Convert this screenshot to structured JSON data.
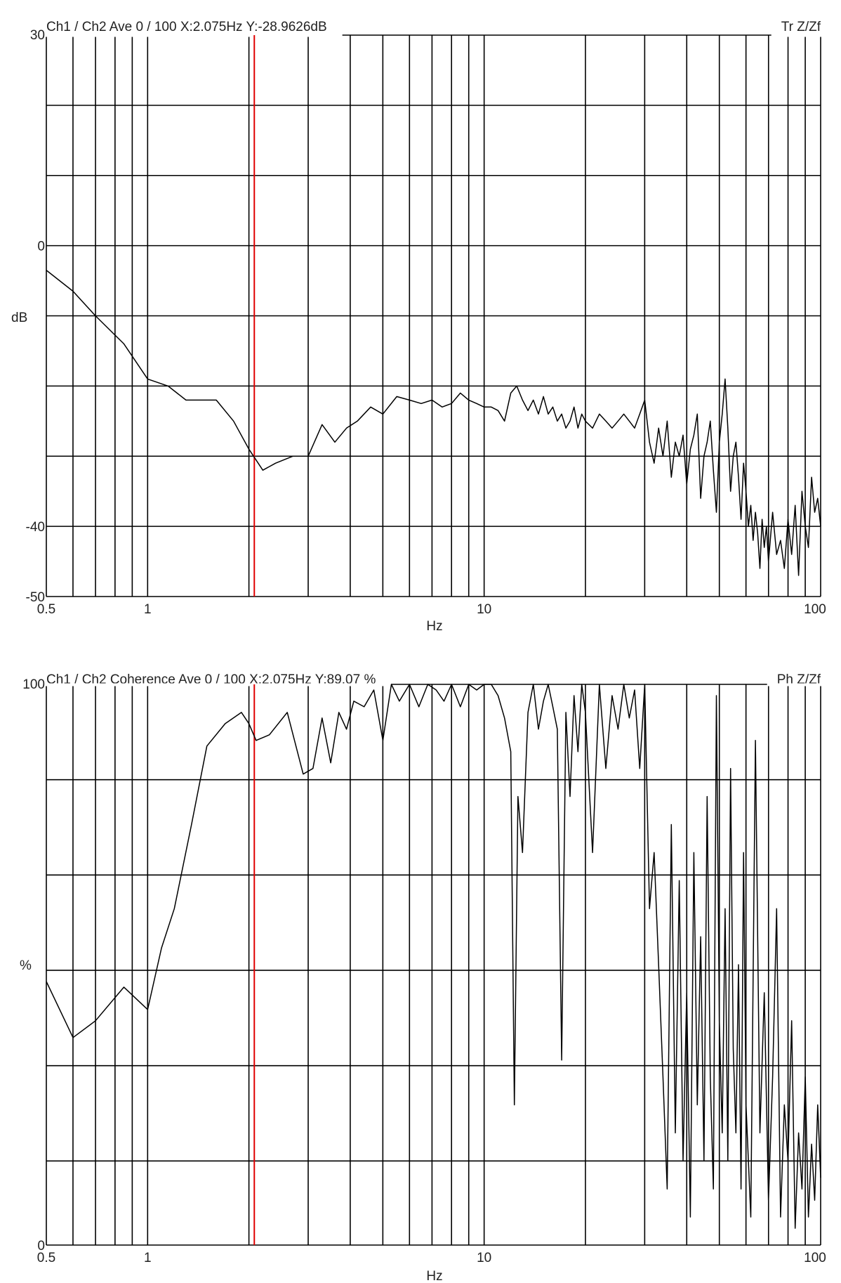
{
  "accent": {
    "cursor": "#e00000",
    "grid": "#000000",
    "trace": "#000000"
  },
  "chart_data": [
    {
      "type": "line",
      "header": "Ch1 / Ch2  Ave 0 / 100  X:2.075Hz  Y:-28.9626dB",
      "corner_label": "Tr Z/Zf",
      "xlabel": "Hz",
      "ylabel": "dB",
      "x_scale": "log",
      "xlim": [
        0.5,
        100
      ],
      "ylim": [
        -50,
        30
      ],
      "x_tick_labels": [
        "0.5",
        "1",
        "10",
        "100"
      ],
      "y_tick_labels": [
        "30",
        "0",
        "-40",
        "-50"
      ],
      "cursor_x": 2.075,
      "cursor_y": -28.9626,
      "grid": true,
      "x": [
        0.5,
        0.6,
        0.7,
        0.85,
        1.0,
        1.15,
        1.3,
        1.6,
        1.8,
        2.0,
        2.2,
        2.4,
        2.7,
        3.0,
        3.3,
        3.6,
        3.9,
        4.2,
        4.6,
        5.0,
        5.5,
        6.0,
        6.5,
        7.0,
        7.5,
        8.0,
        8.5,
        9.0,
        9.5,
        10,
        10.5,
        11,
        11.5,
        12,
        12.5,
        13,
        13.5,
        14,
        14.5,
        15,
        15.5,
        16,
        16.5,
        17,
        17.5,
        18,
        18.5,
        19,
        19.5,
        20,
        21,
        22,
        23,
        24,
        25,
        26,
        27,
        28,
        29,
        30,
        31,
        32,
        33,
        34,
        35,
        36,
        37,
        38,
        39,
        40,
        41,
        42,
        43,
        44,
        45,
        46,
        47,
        48,
        49,
        50,
        51,
        52,
        53,
        54,
        55,
        56,
        57,
        58,
        59,
        60,
        61,
        62,
        63,
        64,
        65,
        66,
        67,
        68,
        69,
        70,
        72,
        74,
        76,
        78,
        80,
        82,
        84,
        86,
        88,
        90,
        92,
        94,
        96,
        98,
        100
      ],
      "y": [
        -3.5,
        -6.5,
        -10,
        -14,
        -19,
        -20,
        -22,
        -22,
        -25,
        -29,
        -32,
        -31,
        -30,
        -30,
        -25.5,
        -28,
        -26,
        -25,
        -23,
        -24,
        -21.5,
        -22,
        -22.5,
        -22,
        -23,
        -22.5,
        -21,
        -22,
        -22.5,
        -23,
        -23,
        -23.5,
        -25,
        -21,
        -20,
        -22,
        -23.5,
        -22,
        -24,
        -21.5,
        -24,
        -23,
        -25,
        -24,
        -26,
        -25,
        -23,
        -26,
        -24,
        -25,
        -26,
        -24,
        -25,
        -26,
        -25,
        -24,
        -25,
        -26,
        -24,
        -22,
        -28,
        -31,
        -26,
        -30,
        -25,
        -33,
        -28,
        -30,
        -27,
        -34,
        -29,
        -27,
        -24,
        -36,
        -30,
        -28,
        -25,
        -32,
        -38,
        -28,
        -24,
        -19,
        -26,
        -35,
        -30,
        -28,
        -33,
        -39,
        -31,
        -35,
        -40,
        -37,
        -42,
        -38,
        -41,
        -46,
        -39,
        -43,
        -40,
        -45,
        -38,
        -44,
        -42,
        -46,
        -39,
        -44,
        -37,
        -47,
        -35,
        -40,
        -43,
        -33,
        -38,
        -36,
        -40
      ]
    },
    {
      "type": "line",
      "header": "Ch1 / Ch2  Coherence Ave 0 / 100  X:2.075Hz  Y:89.07 %",
      "corner_label": "Ph Z/Zf",
      "xlabel": "Hz",
      "ylabel": "%",
      "x_scale": "log",
      "xlim": [
        0.5,
        100
      ],
      "ylim": [
        0,
        100
      ],
      "x_tick_labels": [
        "0.5",
        "1",
        "10",
        "100"
      ],
      "y_tick_labels": [
        "100",
        "0"
      ],
      "cursor_x": 2.075,
      "cursor_y": 89.07,
      "grid": true,
      "x": [
        0.5,
        0.6,
        0.7,
        0.85,
        1.0,
        1.1,
        1.2,
        1.35,
        1.5,
        1.7,
        1.9,
        2.0,
        2.1,
        2.3,
        2.6,
        2.9,
        3.1,
        3.3,
        3.5,
        3.7,
        3.9,
        4.1,
        4.4,
        4.7,
        5.0,
        5.3,
        5.6,
        6.0,
        6.4,
        6.8,
        7.2,
        7.6,
        8.0,
        8.5,
        9.0,
        9.5,
        10,
        10.5,
        11,
        11.5,
        12,
        12.3,
        12.6,
        13,
        13.5,
        14,
        14.5,
        15,
        15.5,
        16,
        16.5,
        17,
        17.5,
        18,
        18.5,
        19,
        19.5,
        20,
        21,
        22,
        23,
        24,
        25,
        26,
        27,
        28,
        29,
        30,
        31,
        32,
        33,
        34,
        35,
        36,
        37,
        38,
        39,
        40,
        41,
        42,
        43,
        44,
        45,
        46,
        47,
        48,
        49,
        50,
        51,
        52,
        53,
        54,
        55,
        56,
        57,
        58,
        59,
        60,
        62,
        64,
        66,
        68,
        70,
        72,
        74,
        76,
        78,
        80,
        82,
        84,
        86,
        88,
        90,
        92,
        94,
        96,
        98,
        100
      ],
      "y": [
        47,
        37,
        40,
        46,
        42,
        53,
        60,
        75,
        89,
        93,
        95,
        93,
        90,
        91,
        95,
        84,
        85,
        94,
        86,
        95,
        92,
        97,
        96,
        99,
        90,
        100,
        97,
        100,
        96,
        100,
        99,
        97,
        100,
        96,
        100,
        99,
        100,
        100,
        98,
        94,
        88,
        25,
        80,
        70,
        95,
        100,
        92,
        97,
        100,
        96,
        92,
        33,
        95,
        80,
        98,
        88,
        100,
        95,
        70,
        100,
        85,
        98,
        92,
        100,
        94,
        99,
        85,
        100,
        60,
        70,
        50,
        30,
        10,
        75,
        20,
        65,
        15,
        45,
        5,
        70,
        25,
        55,
        15,
        80,
        30,
        10,
        98,
        40,
        20,
        60,
        15,
        85,
        35,
        20,
        50,
        10,
        70,
        25,
        5,
        90,
        20,
        45,
        8,
        30,
        60,
        5,
        25,
        15,
        40,
        3,
        20,
        10,
        30,
        5,
        18,
        8,
        25,
        12
      ]
    }
  ]
}
